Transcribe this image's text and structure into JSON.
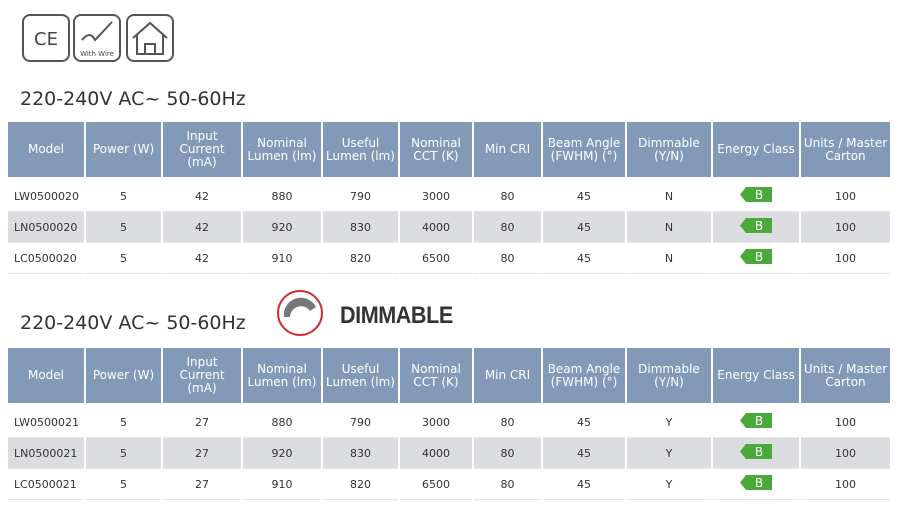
{
  "icons": {
    "ce": "CE",
    "wire": "With Wire"
  },
  "sections": [
    {
      "title": "220-240V AC~ 50-60Hz",
      "headers": [
        "Model",
        "Power (W)",
        "Input Current (mA)",
        "Nominal Lumen (lm)",
        "Useful Lumen (lm)",
        "Nominal CCT (K)",
        "Min CRI",
        "Beam Angle (FWHM) (°)",
        "Dimmable (Y/N)",
        "Energy Class",
        "Units / Master Carton"
      ],
      "rows": [
        [
          "LW0500020",
          "5",
          "42",
          "880",
          "790",
          "3000",
          "80",
          "45",
          "N",
          "B",
          "100"
        ],
        [
          "LN0500020",
          "5",
          "42",
          "920",
          "830",
          "4000",
          "80",
          "45",
          "N",
          "B",
          "100"
        ],
        [
          "LC0500020",
          "5",
          "42",
          "910",
          "820",
          "6500",
          "80",
          "45",
          "N",
          "B",
          "100"
        ]
      ]
    },
    {
      "title": "220-240V AC~ 50-60Hz",
      "badge": "DIMMABLE",
      "headers": [
        "Model",
        "Power (W)",
        "Input Current (mA)",
        "Nominal Lumen (lm)",
        "Useful Lumen (lm)",
        "Nominal CCT (K)",
        "Min CRI",
        "Beam Angle (FWHM) (°)",
        "Dimmable (Y/N)",
        "Energy Class",
        "Units / Master Carton"
      ],
      "rows": [
        [
          "LW0500021",
          "5",
          "27",
          "880",
          "790",
          "3000",
          "80",
          "45",
          "Y",
          "B",
          "100"
        ],
        [
          "LN0500021",
          "5",
          "27",
          "920",
          "830",
          "4000",
          "80",
          "45",
          "Y",
          "B",
          "100"
        ],
        [
          "LC0500021",
          "5",
          "27",
          "910",
          "820",
          "6500",
          "80",
          "45",
          "Y",
          "B",
          "100"
        ]
      ]
    }
  ]
}
